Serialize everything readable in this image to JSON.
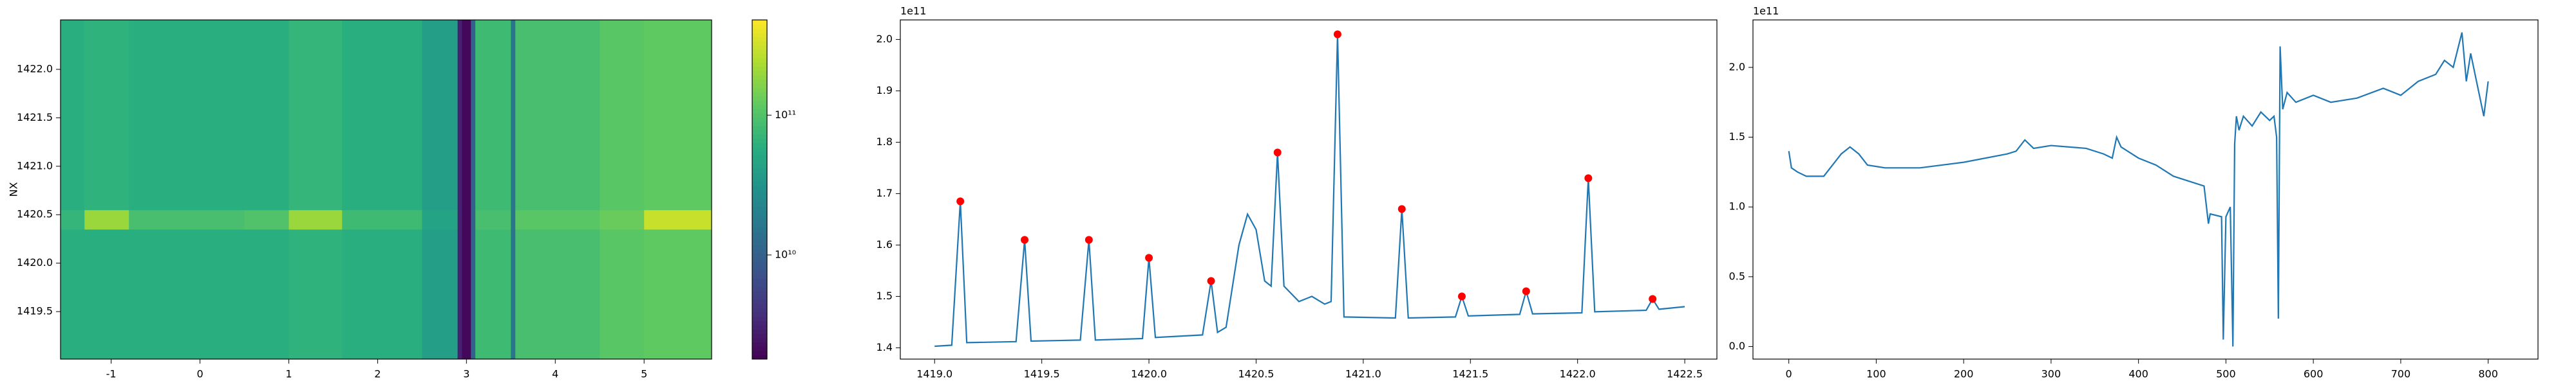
{
  "chart_data": [
    {
      "type": "heatmap",
      "ylabel": "NX",
      "x_edges": [
        -1.57,
        -1.3,
        -0.8,
        0.5,
        1.0,
        1.6,
        2.5,
        2.9,
        2.95,
        3.05,
        3.1,
        3.5,
        3.55,
        4.5,
        5.0,
        5.76
      ],
      "y_edges": [
        1419.01,
        1420.35,
        1420.55,
        1422.51
      ],
      "values": [
        [
          60000000000.0,
          60000000000.0,
          60000000000.0,
          60000000000.0,
          65000000000.0,
          60000000000.0,
          40000000000.0,
          3000000000.0,
          2000000000.0,
          10000000000.0,
          80000000000.0,
          15000000000.0,
          90000000000.0,
          110000000000.0,
          120000000000.0
        ],
        [
          70000000000.0,
          200000000000.0,
          90000000000.0,
          100000000000.0,
          200000000000.0,
          80000000000.0,
          45000000000.0,
          3000000000.0,
          2000000000.0,
          10000000000.0,
          90000000000.0,
          15000000000.0,
          110000000000.0,
          130000000000.0,
          300000000000.0
        ],
        [
          60000000000.0,
          65000000000.0,
          60000000000.0,
          60000000000.0,
          70000000000.0,
          60000000000.0,
          40000000000.0,
          3000000000.0,
          2000000000.0,
          10000000000.0,
          80000000000.0,
          15000000000.0,
          90000000000.0,
          110000000000.0,
          120000000000.0
        ]
      ],
      "xlim": [
        -1.57,
        5.76
      ],
      "ylim": [
        1419.01,
        1422.51
      ],
      "xticks": [
        -1,
        0,
        1,
        2,
        3,
        4,
        5
      ],
      "yticks": [
        1419.5,
        {
          "value": 1420,
          "label": "1420.0"
        },
        1420.5,
        {
          "value": 1421,
          "label": "1421.0"
        },
        1421.5,
        {
          "value": 1422,
          "label": "1422.0"
        }
      ],
      "colorbar": {
        "lim": [
          1800000000.0,
          480000000000.0
        ],
        "scale": "log",
        "colormap": "viridis",
        "ticks": [
          {
            "value": 10000000000.0,
            "label": "10¹⁰"
          },
          {
            "value": 100000000000.0,
            "label": "10¹¹"
          }
        ]
      }
    },
    {
      "type": "line",
      "offset_label": "1e11",
      "color": "#1f77b4",
      "x": [
        1419.0,
        1419.08,
        1419.12,
        1419.15,
        1419.38,
        1419.42,
        1419.45,
        1419.68,
        1419.72,
        1419.75,
        1419.97,
        1420.0,
        1420.03,
        1420.25,
        1420.29,
        1420.32,
        1420.36,
        1420.42,
        1420.46,
        1420.5,
        1420.54,
        1420.57,
        1420.6,
        1420.63,
        1420.7,
        1420.76,
        1420.82,
        1420.85,
        1420.88,
        1420.91,
        1421.15,
        1421.18,
        1421.21,
        1421.43,
        1421.46,
        1421.49,
        1421.73,
        1421.76,
        1421.79,
        1422.02,
        1422.05,
        1422.08,
        1422.32,
        1422.35,
        1422.38,
        1422.5
      ],
      "values": [
        1.403,
        1.405,
        1.685,
        1.41,
        1.412,
        1.61,
        1.413,
        1.415,
        1.61,
        1.415,
        1.418,
        1.575,
        1.42,
        1.425,
        1.53,
        1.43,
        1.44,
        1.6,
        1.66,
        1.63,
        1.53,
        1.52,
        1.78,
        1.52,
        1.49,
        1.5,
        1.485,
        1.49,
        2.01,
        1.46,
        1.458,
        1.67,
        1.458,
        1.46,
        1.5,
        1.462,
        1.465,
        1.51,
        1.466,
        1.468,
        1.73,
        1.47,
        1.473,
        1.495,
        1.475,
        1.48
      ],
      "peaks": {
        "color": "#ff0000",
        "x": [
          1419.12,
          1419.42,
          1419.72,
          1420.0,
          1420.29,
          1420.6,
          1420.88,
          1421.18,
          1421.46,
          1421.76,
          1422.05,
          1422.35
        ],
        "values": [
          1.685,
          1.61,
          1.61,
          1.575,
          1.53,
          1.78,
          2.01,
          1.67,
          1.5,
          1.51,
          1.73,
          1.495
        ]
      },
      "xlim": [
        1418.84,
        1422.65
      ],
      "ylim": [
        1.378,
        2.038
      ],
      "xticks": [
        {
          "value": 1419,
          "label": "1419.0"
        },
        1419.5,
        {
          "value": 1420,
          "label": "1420.0"
        },
        1420.5,
        {
          "value": 1421,
          "label": "1421.0"
        },
        1421.5,
        {
          "value": 1422,
          "label": "1422.0"
        },
        1422.5
      ],
      "yticks": [
        1.4,
        1.5,
        1.6,
        1.7,
        1.8,
        1.9,
        {
          "value": 2,
          "label": "2.0"
        }
      ]
    },
    {
      "type": "line",
      "offset_label": "1e11",
      "color": "#1f77b4",
      "x": [
        0,
        3,
        10,
        20,
        40,
        50,
        60,
        70,
        80,
        90,
        110,
        150,
        200,
        250,
        260,
        270,
        280,
        300,
        320,
        340,
        360,
        370,
        375,
        380,
        400,
        420,
        440,
        460,
        475,
        480,
        482,
        495,
        497,
        500,
        505,
        508,
        510,
        512,
        515,
        520,
        530,
        540,
        550,
        555,
        558,
        560,
        562,
        565,
        570,
        580,
        600,
        620,
        650,
        680,
        700,
        720,
        740,
        750,
        760,
        770,
        775,
        780,
        790,
        795,
        800
      ],
      "values": [
        1.4,
        1.28,
        1.25,
        1.22,
        1.22,
        1.3,
        1.38,
        1.43,
        1.38,
        1.3,
        1.28,
        1.28,
        1.32,
        1.38,
        1.4,
        1.48,
        1.42,
        1.44,
        1.43,
        1.42,
        1.38,
        1.35,
        1.5,
        1.43,
        1.35,
        1.3,
        1.22,
        1.18,
        1.15,
        0.88,
        0.95,
        0.93,
        0.05,
        0.93,
        1.0,
        0.0,
        1.45,
        1.65,
        1.55,
        1.65,
        1.58,
        1.68,
        1.62,
        1.65,
        1.5,
        0.2,
        2.15,
        1.7,
        1.82,
        1.75,
        1.8,
        1.75,
        1.78,
        1.85,
        1.8,
        1.9,
        1.95,
        2.05,
        2.0,
        2.25,
        1.9,
        2.1,
        1.8,
        1.65,
        1.9
      ],
      "xlim": [
        -41,
        857
      ],
      "ylim": [
        -0.09,
        2.34
      ],
      "xticks": [
        0,
        100,
        200,
        300,
        400,
        500,
        600,
        700,
        800
      ],
      "yticks": [
        {
          "value": 0,
          "label": "0.0"
        },
        0.5,
        {
          "value": 1,
          "label": "1.0"
        },
        1.5,
        {
          "value": 2,
          "label": "2.0"
        }
      ]
    }
  ]
}
